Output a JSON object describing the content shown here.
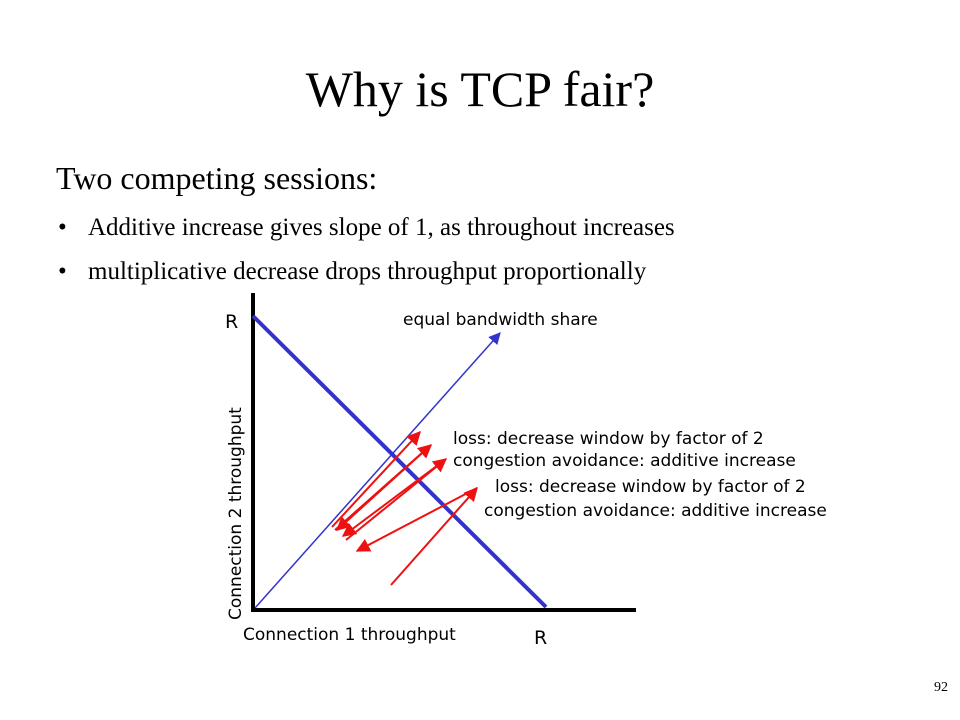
{
  "slide": {
    "title": "Why is TCP fair?",
    "subtitle": "Two competing sessions:",
    "bullets": [
      "Additive increase gives slope of 1, as throughout increases",
      "multiplicative decrease drops throughput proportionally"
    ],
    "page_number": "92"
  },
  "diagram": {
    "y_axis_label": "Connection 2 throughput",
    "x_axis_label": "Connection 1 throughput",
    "y_max_label": "R",
    "x_max_label": "R",
    "equal_share_label": "equal bandwidth share",
    "annotations": [
      "loss: decrease window by factor of 2",
      "congestion avoidance: additive increase",
      "loss: decrease window by factor of 2",
      "congestion avoidance: additive increase"
    ],
    "colors": {
      "capacity_line": "#3333cc",
      "equal_share_line": "#3333cc",
      "trajectory": "#ee1111",
      "axes": "#000000"
    }
  }
}
